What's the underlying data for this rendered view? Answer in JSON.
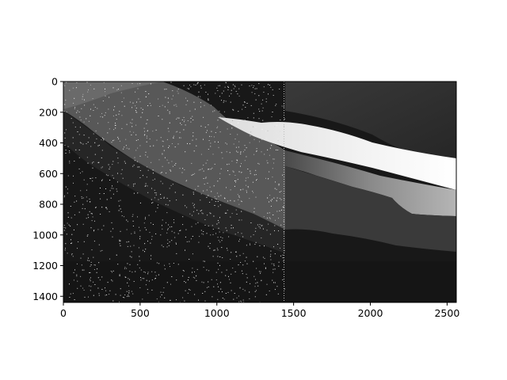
{
  "chart_data": {
    "type": "heatmap",
    "title": "",
    "xlabel": "",
    "ylabel": "",
    "colormap": "grayscale",
    "xlim": [
      0,
      2560
    ],
    "ylim": [
      1440,
      0
    ],
    "x_ticks": [
      0,
      500,
      1000,
      1500,
      2000,
      2500
    ],
    "y_ticks": [
      0,
      200,
      400,
      600,
      800,
      1000,
      1200,
      1400
    ],
    "x_tick_labels": [
      "0",
      "500",
      "1000",
      "1500",
      "2000",
      "2500"
    ],
    "y_tick_labels": [
      "0",
      "200",
      "400",
      "600",
      "800",
      "1000",
      "1200",
      "1400"
    ],
    "noise_region_x_max": 1440,
    "bands": [
      {
        "name": "upper-left-band",
        "shade": "#5a5a5a",
        "boundary_top": [
          [
            0,
            0
          ],
          [
            0,
            0
          ]
        ],
        "boundary_bottom": [
          [
            0,
            200
          ],
          [
            300,
            330
          ],
          [
            600,
            560
          ],
          [
            1000,
            760
          ],
          [
            1440,
            970
          ]
        ]
      },
      {
        "name": "bright-ridge",
        "shade": "#e6e6e6"
      },
      {
        "name": "lower-dark-region",
        "shade": "#1c1c1c"
      }
    ],
    "grid": false,
    "legend": "none"
  }
}
